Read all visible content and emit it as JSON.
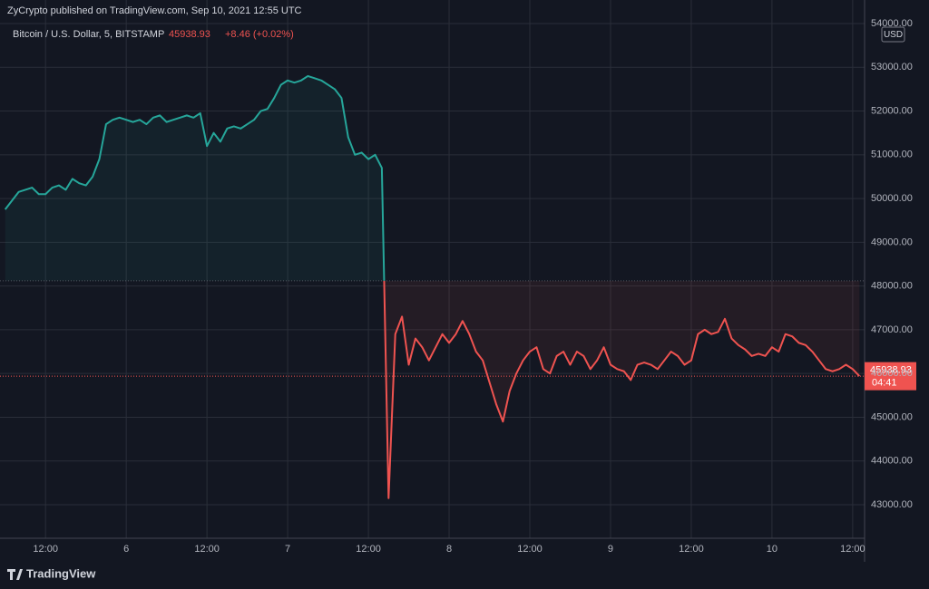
{
  "header": {
    "publisher": "ZyCrypto published on TradingView.com, Sep 10, 2021 12:55 UTC"
  },
  "chart_data": {
    "type": "line",
    "title": "Bitcoin / U.S. Dollar, 5, BITSTAMP",
    "last_value": 45938.93,
    "change": "+8.46 (+0.02%)",
    "currency": "USD",
    "countdown": "04:41",
    "categories": [
      null,
      null,
      null,
      null,
      null,
      null,
      "12:00",
      null,
      null,
      null,
      null,
      null,
      null,
      null,
      null,
      null,
      null,
      null,
      "6",
      null,
      null,
      null,
      null,
      null,
      null,
      null,
      null,
      null,
      null,
      null,
      "12:00",
      null,
      null,
      null,
      null,
      null,
      null,
      null,
      null,
      null,
      null,
      null,
      "7",
      null,
      null,
      null,
      null,
      null,
      null,
      null,
      null,
      null,
      null,
      null,
      "12:00",
      null,
      null,
      null,
      null,
      null,
      null,
      null,
      null,
      null,
      null,
      null,
      "8",
      null,
      null,
      null,
      null,
      null,
      null,
      null,
      null,
      null,
      null,
      null,
      "12:00",
      null,
      null,
      null,
      null,
      null,
      null,
      null,
      null,
      null,
      null,
      null,
      "9",
      null,
      null,
      null,
      null,
      null,
      null,
      null,
      null,
      null,
      null,
      null,
      "12:00",
      null,
      null,
      null,
      null,
      null,
      null,
      null,
      null,
      null,
      null,
      null,
      "10",
      null,
      null,
      null,
      null,
      null,
      null,
      null,
      null,
      null,
      null,
      null,
      "12:00",
      null
    ],
    "values": [
      49750,
      49950,
      50150,
      50200,
      50250,
      50100,
      50100,
      50250,
      50300,
      50200,
      50450,
      50350,
      50300,
      50500,
      50900,
      51700,
      51800,
      51850,
      51800,
      51750,
      51800,
      51700,
      51850,
      51900,
      51750,
      51800,
      51850,
      51900,
      51850,
      51950,
      51200,
      51500,
      51300,
      51600,
      51650,
      51600,
      51700,
      51800,
      52000,
      52050,
      52300,
      52600,
      52700,
      52650,
      52700,
      52800,
      52750,
      52700,
      52600,
      52500,
      52300,
      51400,
      51000,
      51050,
      50900,
      51000,
      50700,
      43150,
      46900,
      47300,
      46200,
      46800,
      46600,
      46300,
      46600,
      46900,
      46700,
      46900,
      47200,
      46900,
      46500,
      46300,
      45800,
      45300,
      44900,
      45600,
      46000,
      46300,
      46500,
      46600,
      46100,
      46000,
      46400,
      46500,
      46200,
      46500,
      46400,
      46100,
      46300,
      46600,
      46200,
      46100,
      46050,
      45850,
      46200,
      46250,
      46200,
      46100,
      46300,
      46500,
      46400,
      46200,
      46300,
      46900,
      47000,
      46900,
      46950,
      47250,
      46800,
      46650,
      46550,
      46400,
      46450,
      46400,
      46600,
      46500,
      46900,
      46850,
      46700,
      46650,
      46500,
      46300,
      46100,
      46050,
      46100,
      46200,
      46100,
      45938.93
    ],
    "baseline": 48120,
    "color_above": "#26a69a",
    "color_below": "#ef5350",
    "ylim": [
      42233,
      54539
    ],
    "yticks": [
      {
        "value": 43000,
        "label": "43000.00"
      },
      {
        "value": 44000,
        "label": "44000.00"
      },
      {
        "value": 45000,
        "label": "45000.00"
      },
      {
        "value": 46000,
        "label": "46000.00"
      },
      {
        "value": 47000,
        "label": "47000.00"
      },
      {
        "value": 48000,
        "label": "48000.00"
      },
      {
        "value": 49000,
        "label": "49000.00"
      },
      {
        "value": 50000,
        "label": "50000.00"
      },
      {
        "value": 51000,
        "label": "51000.00"
      },
      {
        "value": 52000,
        "label": "52000.00"
      },
      {
        "value": 53000,
        "label": "53000.00"
      },
      {
        "value": 54000,
        "label": "54000.00"
      }
    ],
    "grid": true
  },
  "footer": {
    "brand": "TradingView"
  }
}
